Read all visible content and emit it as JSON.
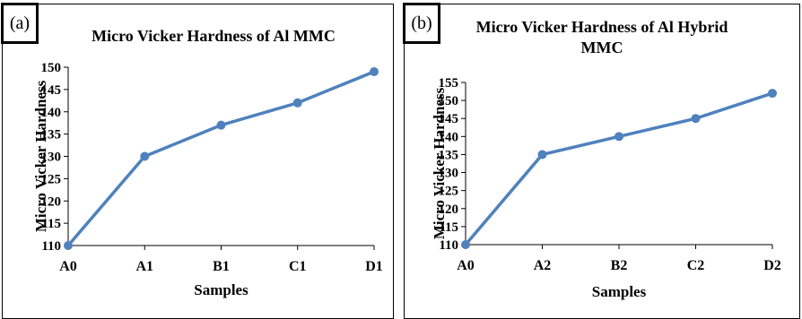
{
  "panels": [
    {
      "label": "(a)",
      "title": "Micro Vicker Hardness of Al  MMC"
    },
    {
      "label": "(b)",
      "title": "Micro Vicker Hardness of Al Hybrid\nMMC"
    }
  ],
  "colors": {
    "series": "#4f81bd",
    "axis": "#000000"
  },
  "chart_data": [
    {
      "type": "line",
      "title": "Micro Vicker Hardness of Al  MMC",
      "xlabel": "Samples",
      "ylabel": "Micro Vicker Hardness",
      "categories": [
        "A0",
        "A1",
        "B1",
        "C1",
        "D1"
      ],
      "series": [
        {
          "values": [
            110,
            130,
            137,
            142,
            149
          ]
        }
      ],
      "ylim": [
        110,
        150
      ],
      "yticks": [
        110,
        115,
        120,
        125,
        130,
        135,
        140,
        145,
        150
      ],
      "grid": false,
      "legend": "none"
    },
    {
      "type": "line",
      "title": "Micro Vicker Hardness of Al Hybrid MMC",
      "xlabel": "Samples",
      "ylabel": "Micro Vicker Hardness",
      "categories": [
        "A0",
        "A2",
        "B2",
        "C2",
        "D2"
      ],
      "series": [
        {
          "values": [
            110,
            135,
            140,
            145,
            152
          ]
        }
      ],
      "ylim": [
        110,
        155
      ],
      "yticks": [
        110,
        115,
        120,
        125,
        130,
        135,
        140,
        145,
        150,
        155
      ],
      "grid": false,
      "legend": "none"
    }
  ]
}
